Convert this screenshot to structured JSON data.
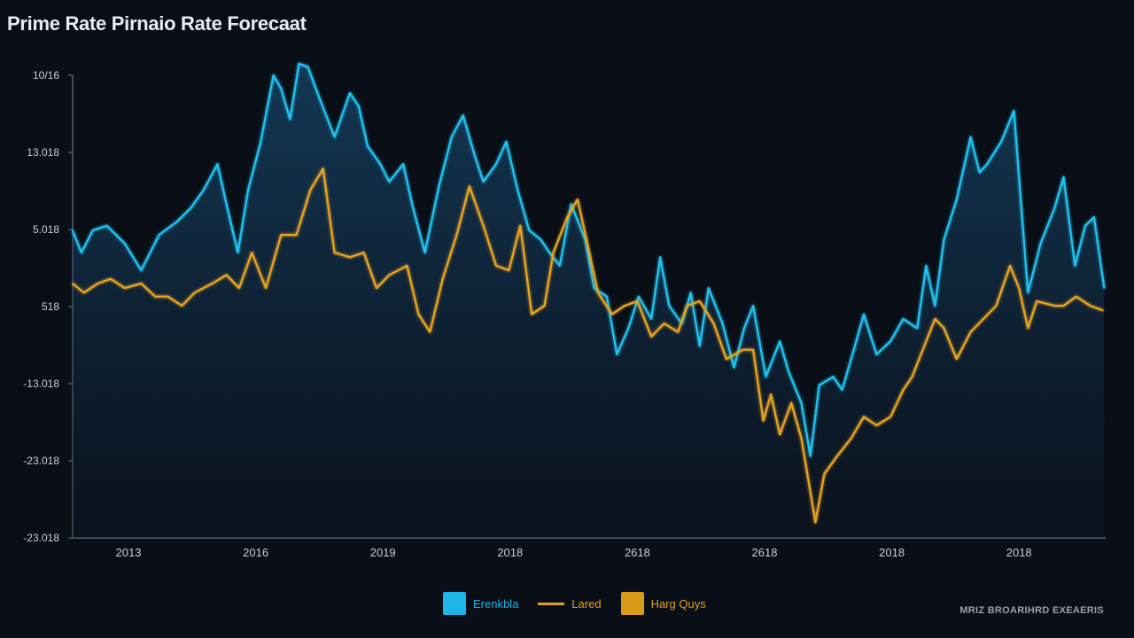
{
  "chart_data": {
    "type": "area",
    "title": "Prime Rate Pirnaio Rate Forecaat",
    "xlabel": "",
    "ylabel": "",
    "y_tick_labels": [
      "-23.018",
      "-23.018",
      "-13.018",
      "518",
      "5.018",
      "13.018",
      "10/16"
    ],
    "x_tick_labels": [
      "2013",
      "2016",
      "2019",
      "2018",
      "2618",
      "2618",
      "2018",
      "2018"
    ],
    "xlim": [
      -0.44,
      7.7
    ],
    "ylim": [
      0,
      6
    ],
    "grid": false,
    "legend_placement": "bottom",
    "legend": [
      {
        "label": "Erenkbla",
        "marker": "square",
        "color": "#1eb6e6"
      },
      {
        "label": "Lared",
        "marker": "line",
        "color": "#e0a21e"
      },
      {
        "label": "Harg Quys",
        "marker": "square",
        "color": "#d99a1a"
      }
    ],
    "footer": "MRIZ BROARIHRD EXEAERIS",
    "colors": {
      "blue": "#22c2f0",
      "orange": "#e8a424",
      "background": "#0a0e16"
    },
    "series": [
      {
        "color": "#22c2f0",
        "fill": true,
        "points": [
          [
            -0.44,
            3.99
          ],
          [
            -0.37,
            3.7
          ],
          [
            -0.28,
            3.99
          ],
          [
            -0.17,
            4.05
          ],
          [
            -0.03,
            3.82
          ],
          [
            0.1,
            3.47
          ],
          [
            0.24,
            3.93
          ],
          [
            0.38,
            4.1
          ],
          [
            0.49,
            4.28
          ],
          [
            0.59,
            4.51
          ],
          [
            0.7,
            4.85
          ],
          [
            0.77,
            4.33
          ],
          [
            0.86,
            3.7
          ],
          [
            0.94,
            4.51
          ],
          [
            1.04,
            5.14
          ],
          [
            1.14,
            6.0
          ],
          [
            1.2,
            5.83
          ],
          [
            1.27,
            5.43
          ],
          [
            1.34,
            6.15
          ],
          [
            1.41,
            6.11
          ],
          [
            1.5,
            5.71
          ],
          [
            1.62,
            5.2
          ],
          [
            1.74,
            5.77
          ],
          [
            1.81,
            5.6
          ],
          [
            1.88,
            5.08
          ],
          [
            1.98,
            4.85
          ],
          [
            2.05,
            4.62
          ],
          [
            2.16,
            4.85
          ],
          [
            2.23,
            4.33
          ],
          [
            2.33,
            3.7
          ],
          [
            2.44,
            4.56
          ],
          [
            2.54,
            5.2
          ],
          [
            2.63,
            5.48
          ],
          [
            2.72,
            4.97
          ],
          [
            2.79,
            4.62
          ],
          [
            2.89,
            4.85
          ],
          [
            2.97,
            5.14
          ],
          [
            3.06,
            4.51
          ],
          [
            3.15,
            3.99
          ],
          [
            3.24,
            3.87
          ],
          [
            3.31,
            3.7
          ],
          [
            3.39,
            3.53
          ],
          [
            3.48,
            4.33
          ],
          [
            3.59,
            3.87
          ],
          [
            3.66,
            3.24
          ],
          [
            3.76,
            3.13
          ],
          [
            3.84,
            2.38
          ],
          [
            3.93,
            2.72
          ],
          [
            4.01,
            3.13
          ],
          [
            4.11,
            2.84
          ],
          [
            4.18,
            3.64
          ],
          [
            4.25,
            3.01
          ],
          [
            4.35,
            2.78
          ],
          [
            4.42,
            3.18
          ],
          [
            4.49,
            2.49
          ],
          [
            4.56,
            3.24
          ],
          [
            4.67,
            2.78
          ],
          [
            4.76,
            2.21
          ],
          [
            4.84,
            2.72
          ],
          [
            4.91,
            3.01
          ],
          [
            5.01,
            2.09
          ],
          [
            5.12,
            2.55
          ],
          [
            5.19,
            2.15
          ],
          [
            5.29,
            1.75
          ],
          [
            5.36,
            1.06
          ],
          [
            5.43,
            1.98
          ],
          [
            5.54,
            2.09
          ],
          [
            5.61,
            1.92
          ],
          [
            5.71,
            2.49
          ],
          [
            5.78,
            2.9
          ],
          [
            5.88,
            2.38
          ],
          [
            5.99,
            2.55
          ],
          [
            6.09,
            2.84
          ],
          [
            6.2,
            2.72
          ],
          [
            6.27,
            3.53
          ],
          [
            6.34,
            3.01
          ],
          [
            6.41,
            3.87
          ],
          [
            6.51,
            4.39
          ],
          [
            6.62,
            5.2
          ],
          [
            6.69,
            4.74
          ],
          [
            6.75,
            4.85
          ],
          [
            6.86,
            5.14
          ],
          [
            6.96,
            5.54
          ],
          [
            7.07,
            3.18
          ],
          [
            7.17,
            3.82
          ],
          [
            7.28,
            4.28
          ],
          [
            7.35,
            4.68
          ],
          [
            7.44,
            3.53
          ],
          [
            7.52,
            4.05
          ],
          [
            7.59,
            4.16
          ],
          [
            7.67,
            3.24
          ]
        ]
      },
      {
        "color": "#e8a424",
        "fill": false,
        "points": [
          [
            -0.44,
            3.3
          ],
          [
            -0.35,
            3.18
          ],
          [
            -0.24,
            3.3
          ],
          [
            -0.14,
            3.36
          ],
          [
            -0.03,
            3.24
          ],
          [
            0.1,
            3.3
          ],
          [
            0.21,
            3.13
          ],
          [
            0.31,
            3.13
          ],
          [
            0.42,
            3.01
          ],
          [
            0.52,
            3.18
          ],
          [
            0.66,
            3.3
          ],
          [
            0.77,
            3.41
          ],
          [
            0.87,
            3.24
          ],
          [
            0.97,
            3.7
          ],
          [
            1.08,
            3.24
          ],
          [
            1.2,
            3.93
          ],
          [
            1.32,
            3.93
          ],
          [
            1.43,
            4.51
          ],
          [
            1.53,
            4.79
          ],
          [
            1.62,
            3.7
          ],
          [
            1.74,
            3.64
          ],
          [
            1.85,
            3.7
          ],
          [
            1.95,
            3.24
          ],
          [
            2.05,
            3.41
          ],
          [
            2.19,
            3.53
          ],
          [
            2.28,
            2.9
          ],
          [
            2.37,
            2.67
          ],
          [
            2.47,
            3.36
          ],
          [
            2.58,
            3.93
          ],
          [
            2.68,
            4.56
          ],
          [
            2.79,
            4.05
          ],
          [
            2.89,
            3.53
          ],
          [
            2.99,
            3.47
          ],
          [
            3.08,
            4.05
          ],
          [
            3.17,
            2.9
          ],
          [
            3.27,
            3.01
          ],
          [
            3.34,
            3.7
          ],
          [
            3.45,
            4.16
          ],
          [
            3.53,
            4.39
          ],
          [
            3.6,
            3.87
          ],
          [
            3.69,
            3.18
          ],
          [
            3.8,
            2.9
          ],
          [
            3.9,
            3.01
          ],
          [
            4.0,
            3.07
          ],
          [
            4.11,
            2.61
          ],
          [
            4.21,
            2.78
          ],
          [
            4.32,
            2.67
          ],
          [
            4.39,
            3.01
          ],
          [
            4.49,
            3.07
          ],
          [
            4.6,
            2.78
          ],
          [
            4.7,
            2.32
          ],
          [
            4.83,
            2.44
          ],
          [
            4.91,
            2.44
          ],
          [
            4.99,
            1.52
          ],
          [
            5.05,
            1.86
          ],
          [
            5.12,
            1.34
          ],
          [
            5.21,
            1.75
          ],
          [
            5.29,
            1.29
          ],
          [
            5.4,
            0.2
          ],
          [
            5.47,
            0.83
          ],
          [
            5.57,
            1.06
          ],
          [
            5.68,
            1.29
          ],
          [
            5.78,
            1.57
          ],
          [
            5.88,
            1.46
          ],
          [
            5.99,
            1.57
          ],
          [
            6.09,
            1.92
          ],
          [
            6.16,
            2.09
          ],
          [
            6.27,
            2.55
          ],
          [
            6.34,
            2.84
          ],
          [
            6.41,
            2.72
          ],
          [
            6.51,
            2.32
          ],
          [
            6.62,
            2.67
          ],
          [
            6.72,
            2.84
          ],
          [
            6.82,
            3.01
          ],
          [
            6.93,
            3.53
          ],
          [
            7.0,
            3.24
          ],
          [
            7.07,
            2.72
          ],
          [
            7.14,
            3.07
          ],
          [
            7.28,
            3.01
          ],
          [
            7.35,
            3.01
          ],
          [
            7.45,
            3.13
          ],
          [
            7.56,
            3.01
          ],
          [
            7.66,
            2.95
          ]
        ]
      }
    ]
  }
}
